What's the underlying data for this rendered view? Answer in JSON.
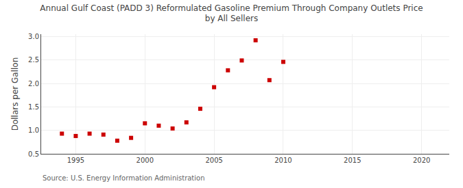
{
  "chart_data": {
    "type": "scatter",
    "title": "Annual Gulf Coast (PADD 3) Reformulated Gasoline Premium Through Company Outlets Price\nby All Sellers",
    "ylabel": "Dollars per Gallon",
    "annotations": [
      "Source: U.S. Energy Information Administration"
    ],
    "x": [
      1994,
      1995,
      1996,
      1997,
      1998,
      1999,
      2000,
      2001,
      2002,
      2003,
      2004,
      2005,
      2006,
      2007,
      2008,
      2009,
      2010
    ],
    "values": [
      0.93,
      0.88,
      0.93,
      0.91,
      0.78,
      0.84,
      1.15,
      1.1,
      1.04,
      1.17,
      1.46,
      1.92,
      2.28,
      2.49,
      2.92,
      2.07,
      2.46
    ],
    "color": "#cc0000",
    "marker": "square",
    "xlim": [
      1992.5,
      2022
    ],
    "xticks": [
      1995,
      2000,
      2005,
      2010,
      2015,
      2020
    ],
    "ylim": [
      0.5,
      3.05
    ],
    "yticks": [
      0.5,
      {
        "value": 1.0,
        "label": "1.0"
      },
      1.5,
      {
        "value": 2.0,
        "label": "2.0"
      },
      2.5,
      {
        "value": 3.0,
        "label": "3.0"
      }
    ],
    "grid": true
  }
}
